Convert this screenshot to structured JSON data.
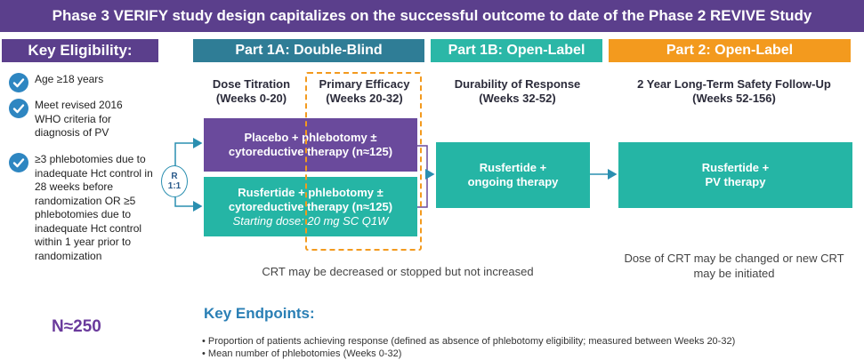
{
  "title": "Phase 3 VERIFY study design capitalizes on the successful outcome to date of the Phase 2 REVIVE Study",
  "eligibility": {
    "header": "Key Eligibility:",
    "items": [
      {
        "text": "Age ≥18 years"
      },
      {
        "text": "Meet revised 2016 WHO criteria for diagnosis of PV"
      },
      {
        "text": "≥3 phlebotomies due to inadequate Hct control in 28 weeks before randomization OR ≥5 phlebotomies due to inadequate Hct control within 1 year prior to randomization"
      }
    ],
    "n_label": "N≈250"
  },
  "parts": {
    "part1a": "Part 1A: Double-Blind",
    "part1b": "Part 1B: Open-Label",
    "part2": "Part 2: Open-Label"
  },
  "phases": {
    "dose_titration": {
      "name": "Dose Titration",
      "weeks": "(Weeks 0-20)"
    },
    "primary_efficacy": {
      "name": "Primary Efficacy",
      "weeks": "(Weeks 20-32)"
    },
    "durability": {
      "name": "Durability of Response",
      "weeks": "(Weeks 32-52)"
    },
    "followup": {
      "name": "2 Year Long-Term Safety Follow-Up",
      "weeks": "(Weeks 52-156)"
    }
  },
  "randomization": {
    "letter": "R",
    "ratio": "1:1"
  },
  "arms": {
    "placebo": {
      "line1": "Placebo + phlebotomy ±",
      "line2": "cytoreductive therapy (n≈125)"
    },
    "rusfertide": {
      "line1": "Rusfertide + phlebotomy ±",
      "line2": "cytoreductive therapy (n≈125)",
      "line3": "Starting dose: 20 mg SC Q1W"
    },
    "part1b_box": {
      "line1": "Rusfertide +",
      "line2": "ongoing therapy"
    },
    "part2_box": {
      "line1": "Rusfertide +",
      "line2": "PV therapy"
    }
  },
  "notes": {
    "crt_part1": "CRT may be decreased or stopped but not increased",
    "crt_part2_line1": "Dose of CRT may be changed or new CRT",
    "crt_part2_line2": "may be initiated"
  },
  "endpoints": {
    "header": "Key Endpoints:",
    "items": [
      {
        "text": "Proportion of patients achieving response (defined as absence of phlebotomy eligibility; measured between Weeks 20-32)"
      },
      {
        "text": "Mean number of phlebotomies (Weeks 0-32)"
      }
    ]
  },
  "colors": {
    "title_bg": "#5b3f8c",
    "part1a_bg": "#2f7d96",
    "part1b_bg": "#2bb7a7",
    "part2_bg": "#f39a1e",
    "placebo_box": "#6a4a9c",
    "teal_box": "#25b5a5",
    "n_color": "#6a3a9c",
    "endpoint_header": "#2a7fb5",
    "dashed_border": "#f39a1e"
  }
}
